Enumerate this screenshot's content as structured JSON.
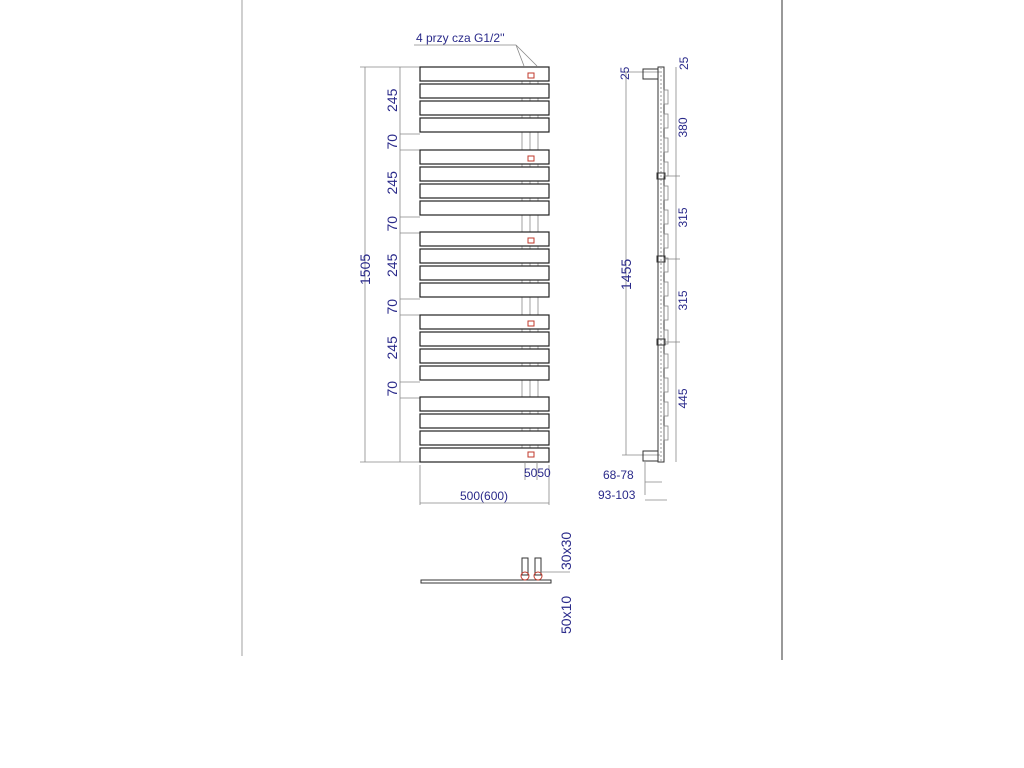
{
  "connection_note": "4 przy   cza G1/2''",
  "front_view": {
    "height_total": "1505",
    "segments": [
      "245",
      "70",
      "245",
      "70",
      "245",
      "70",
      "245",
      "70"
    ],
    "width": "500(600)",
    "connection_offsets": "5050"
  },
  "side_view": {
    "height": "1455",
    "top_left": "25",
    "top_right": "25",
    "segments": [
      "380",
      "315",
      "315",
      "445"
    ],
    "depth_inner": "68-78",
    "depth_outer": "93-103"
  },
  "section_view": {
    "collector": "30x30",
    "slat": "50x10"
  },
  "colors": {
    "dimension_text": "#2a2a8a",
    "connection_marker": "#c0392b"
  }
}
